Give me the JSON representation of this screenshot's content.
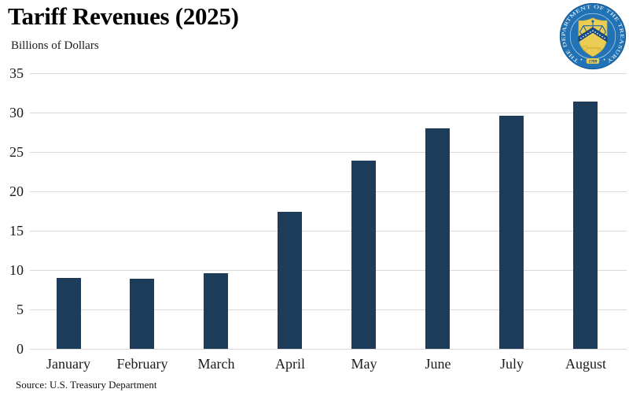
{
  "header": {
    "title": "Tariff Revenues (2025)",
    "subtitle": "Billions of Dollars",
    "logo": {
      "name": "us-treasury-seal",
      "ring_text": "THE DEPARTMENT OF THE TREASURY",
      "year": "1789",
      "colors": {
        "ring_blue": "#2273b6",
        "rim_blue": "#15598f",
        "shield_gold": "#eccd53",
        "chevron_blue": "#1b4f8a",
        "emblem_blue": "#1d66a8"
      }
    }
  },
  "chart_data": {
    "type": "bar",
    "title": "Tariff Revenues (2025)",
    "subtitle": "Billions of Dollars",
    "xlabel": "",
    "ylabel": "Billions of Dollars",
    "categories": [
      "January",
      "February",
      "March",
      "April",
      "May",
      "June",
      "July",
      "August"
    ],
    "values": [
      9.0,
      8.9,
      9.6,
      17.4,
      23.9,
      28.0,
      29.6,
      31.4
    ],
    "yticks": [
      0,
      5,
      10,
      15,
      20,
      25,
      30,
      35
    ],
    "ylim": [
      0,
      35
    ],
    "grid": true,
    "legend": "none",
    "bar_color": "#1c3c5a",
    "gridline_color": "#d9d9d9"
  },
  "footer": {
    "source": "Source: U.S. Treasury Department"
  }
}
